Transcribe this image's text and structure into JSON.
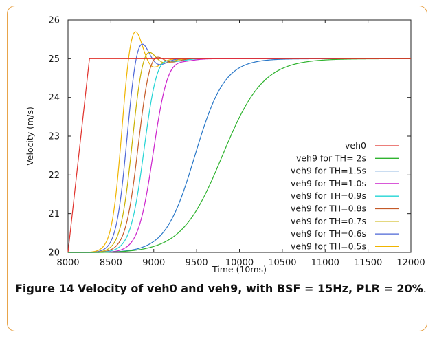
{
  "caption": {
    "label": "Figure 14",
    "text": "Velocity of veh0 and veh9, with BSF = 15Hz, PLR = 20%",
    "end": "."
  },
  "chart_data": {
    "type": "line",
    "xlabel": "Time (10ms)",
    "ylabel": "Velocity (m/s)",
    "xlim": [
      8000,
      12000
    ],
    "ylim": [
      20,
      26
    ],
    "xticks": [
      8000,
      8500,
      9000,
      9500,
      10000,
      10500,
      11000,
      11500,
      12000
    ],
    "yticks": [
      20,
      21,
      22,
      23,
      24,
      25,
      26
    ],
    "grid": false,
    "legend_position": "bottom-right",
    "series": [
      {
        "name": "veh0",
        "color": "#e0302a",
        "kind": "ramp",
        "start": 8000,
        "reach": 8250,
        "v0": 20,
        "v1": 25
      },
      {
        "name": "veh9 for TH=   2s",
        "color": "#2fb32f",
        "kind": "sigmoid",
        "mid": 9800,
        "k": 0.0042,
        "start": 8400,
        "overshoot": 0
      },
      {
        "name": "veh9 for TH=1.5s",
        "color": "#2a78c8",
        "kind": "sigmoid",
        "mid": 9480,
        "k": 0.0058,
        "start": 8350,
        "overshoot": 0
      },
      {
        "name": "veh9 for TH=1.0s",
        "color": "#cc22cc",
        "kind": "sigmoid",
        "mid": 8990,
        "k": 0.0115,
        "start": 8350,
        "overshoot": 0.02
      },
      {
        "name": "veh9 for TH=0.9s",
        "color": "#22d4d4",
        "kind": "sigmoid",
        "mid": 8880,
        "k": 0.0125,
        "start": 8300,
        "overshoot": 0.04
      },
      {
        "name": "veh9 for TH=0.8s",
        "color": "#c45a28",
        "kind": "sigmoid",
        "mid": 8810,
        "k": 0.0135,
        "start": 8300,
        "overshoot": 0.07
      },
      {
        "name": "veh9 for TH=0.7s",
        "color": "#c9b000",
        "kind": "sigmoid",
        "mid": 8740,
        "k": 0.0145,
        "start": 8280,
        "overshoot": 0.1
      },
      {
        "name": "veh9 for TH=0.6s",
        "color": "#4c66d6",
        "kind": "sigmoid",
        "mid": 8680,
        "k": 0.0155,
        "start": 8250,
        "overshoot": 0.15
      },
      {
        "name": "veh9 for TH=0.5s",
        "color": "#f0b400",
        "kind": "sigmoid",
        "mid": 8620,
        "k": 0.0165,
        "start": 8200,
        "overshoot": 0.22
      }
    ]
  }
}
